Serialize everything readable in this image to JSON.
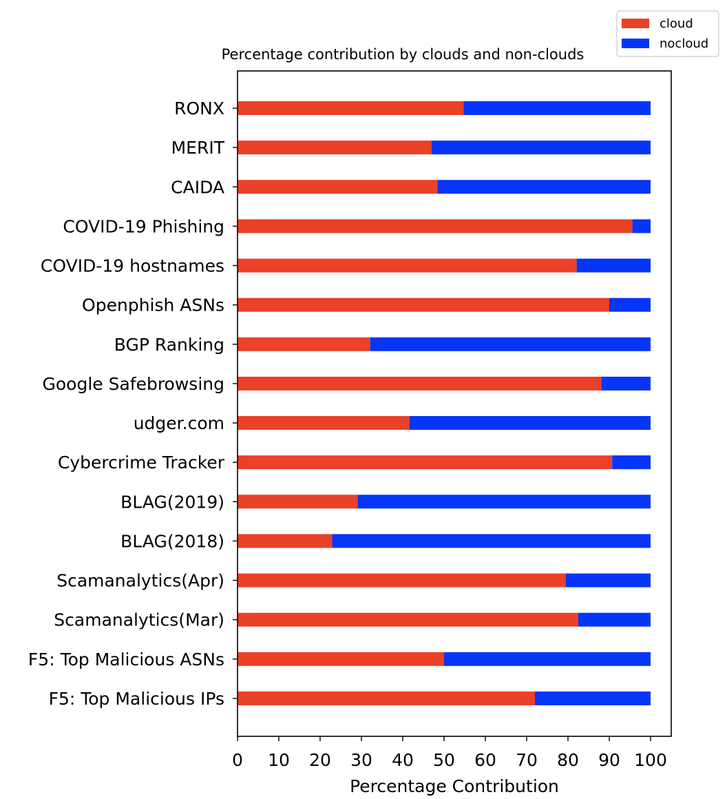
{
  "chart_data": {
    "type": "bar",
    "orientation": "horizontal",
    "stacked": true,
    "title": "Percentage contribution by clouds and non-clouds",
    "xlabel": "Percentage Contribution",
    "ylabel": "",
    "xlim": [
      0,
      105
    ],
    "xticks": [
      0,
      10,
      20,
      30,
      40,
      50,
      60,
      70,
      80,
      90,
      100
    ],
    "grid": false,
    "legend_position": "top-right",
    "categories": [
      "RONX",
      "MERIT",
      "CAIDA",
      "COVID-19 Phishing",
      "COVID-19 hostnames",
      "Openphish ASNs",
      "BGP Ranking",
      "Google Safebrowsing",
      "udger.com",
      "Cybercrime Tracker",
      "BLAG(2019)",
      "BLAG(2018)",
      "Scamanalytics(Apr)",
      "Scamanalytics(Mar)",
      "F5: Top Malicious ASNs",
      "F5: Top Malicious IPs"
    ],
    "series": [
      {
        "name": "cloud",
        "color": "#ea4128",
        "values": [
          54.7,
          47.0,
          48.4,
          95.6,
          82.1,
          90.0,
          32.1,
          88.1,
          41.6,
          90.7,
          29.1,
          22.9,
          79.5,
          82.5,
          50.0,
          72.0
        ]
      },
      {
        "name": "nocloud",
        "color": "#0535f7",
        "values": [
          45.3,
          53.0,
          51.6,
          4.4,
          17.9,
          10.0,
          67.9,
          11.9,
          58.4,
          9.3,
          70.9,
          77.1,
          20.5,
          17.5,
          50.0,
          28.0
        ]
      }
    ]
  }
}
